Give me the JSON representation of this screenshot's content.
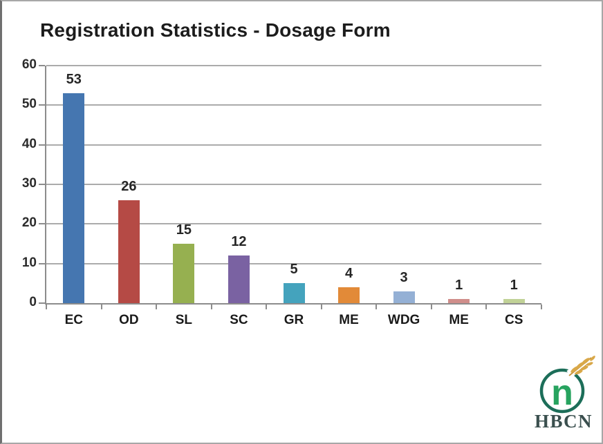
{
  "title": "Registration Statistics - Dosage Form",
  "chart_data": {
    "type": "bar",
    "title": "Registration Statistics - Dosage Form",
    "categories": [
      "EC",
      "OD",
      "SL",
      "SC",
      "GR",
      "ME",
      "WDG",
      "ME",
      "CS"
    ],
    "values": [
      53,
      26,
      15,
      12,
      5,
      4,
      3,
      1,
      1
    ],
    "bar_colors": [
      "#4576B0",
      "#B54A45",
      "#96B050",
      "#7A62A2",
      "#44A3BD",
      "#E28A38",
      "#94B0D5",
      "#D08E8B",
      "#C1D297"
    ],
    "xlabel": "",
    "ylabel": "",
    "ylim": [
      0,
      60
    ],
    "yticks": [
      0,
      10,
      20,
      30,
      40,
      50,
      60
    ],
    "grid": true,
    "legend": false,
    "gridline_color": "#ababab",
    "axis_color": "#8c8c8c",
    "value_label_color": "#262626"
  },
  "logo": {
    "text": "HBCN",
    "letter": "n",
    "circle_color": "#1c6e59",
    "letter_color": "#27a35f",
    "wheat_color": "#d9a849",
    "wheat_stem_color": "#c8943e",
    "text_color": "#3a4f4e"
  }
}
